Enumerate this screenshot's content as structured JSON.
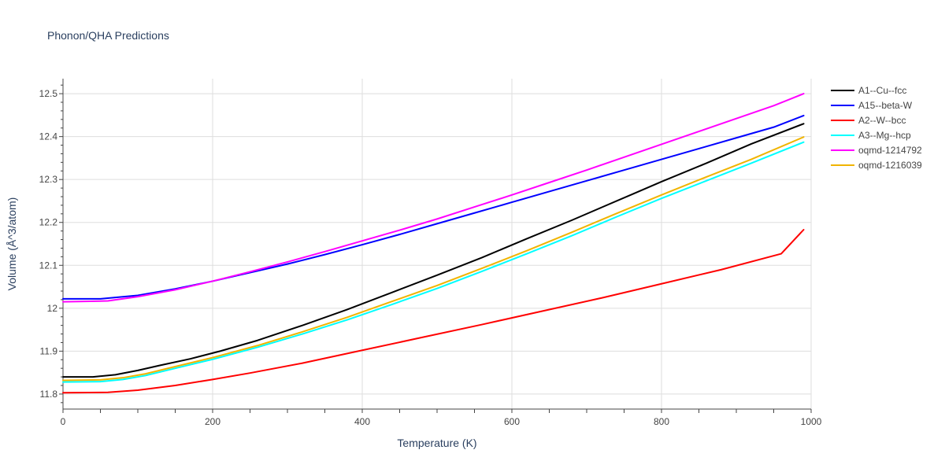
{
  "chart_data": {
    "type": "line",
    "title": "Phonon/QHA Predictions",
    "xlabel": "Temperature (K)",
    "ylabel": "Volume (Å^3/atom)",
    "xlim": [
      0,
      1000
    ],
    "ylim": [
      11.765,
      12.535
    ],
    "x_ticks": [
      0,
      200,
      400,
      600,
      800,
      1000
    ],
    "y_ticks": [
      11.8,
      11.9,
      12,
      12.1,
      12.2,
      12.3,
      12.4,
      12.5
    ],
    "x_tick_labels": [
      "0",
      "200",
      "400",
      "600",
      "800",
      "1000"
    ],
    "y_tick_labels": [
      "11.8",
      "11.9",
      "12",
      "12.1",
      "12.2",
      "12.3",
      "12.4",
      "12.5"
    ],
    "grid": true,
    "legend_position": "top-right",
    "series": [
      {
        "name": "A1--Cu--fcc",
        "color": "#000000",
        "x": [
          0,
          40,
          70,
          100,
          130,
          170,
          210,
          260,
          320,
          380,
          440,
          500,
          560,
          620,
          680,
          720,
          760,
          800,
          860,
          920,
          990
        ],
        "y": [
          11.84,
          11.84,
          11.845,
          11.855,
          11.867,
          11.882,
          11.9,
          11.925,
          11.96,
          11.997,
          12.037,
          12.077,
          12.118,
          12.162,
          12.205,
          12.235,
          12.265,
          12.295,
          12.338,
          12.383,
          12.43
        ]
      },
      {
        "name": "A15--beta-W",
        "color": "#0000ff",
        "x": [
          0,
          50,
          100,
          150,
          200,
          250,
          300,
          350,
          400,
          450,
          500,
          550,
          600,
          650,
          700,
          750,
          800,
          850,
          900,
          950,
          990
        ],
        "y": [
          12.022,
          12.022,
          12.03,
          12.045,
          12.063,
          12.083,
          12.103,
          12.125,
          12.148,
          12.172,
          12.197,
          12.222,
          12.247,
          12.272,
          12.297,
          12.322,
          12.347,
          12.372,
          12.397,
          12.422,
          12.449
        ]
      },
      {
        "name": "A2--W--bcc",
        "color": "#ff0000",
        "x": [
          0,
          60,
          100,
          150,
          200,
          250,
          320,
          400,
          480,
          560,
          640,
          720,
          800,
          880,
          960,
          990
        ],
        "y": [
          11.803,
          11.804,
          11.809,
          11.82,
          11.834,
          11.849,
          11.872,
          11.902,
          11.932,
          11.962,
          11.993,
          12.024,
          12.057,
          12.09,
          12.127,
          12.183
        ]
      },
      {
        "name": "A3--Mg--hcp",
        "color": "#00ffff",
        "x": [
          0,
          50,
          80,
          110,
          150,
          200,
          260,
          320,
          380,
          440,
          500,
          560,
          620,
          680,
          740,
          800,
          860,
          920,
          990
        ],
        "y": [
          11.828,
          11.829,
          11.834,
          11.843,
          11.86,
          11.881,
          11.909,
          11.94,
          11.973,
          12.009,
          12.046,
          12.086,
          12.127,
          12.169,
          12.213,
          12.256,
          12.297,
          12.338,
          12.387
        ]
      },
      {
        "name": "oqmd-1214792",
        "color": "#ff00ff",
        "x": [
          0,
          60,
          100,
          150,
          200,
          250,
          300,
          350,
          400,
          450,
          500,
          550,
          600,
          650,
          700,
          750,
          800,
          850,
          900,
          950,
          990
        ],
        "y": [
          12.015,
          12.017,
          12.027,
          12.043,
          12.063,
          12.085,
          12.108,
          12.132,
          12.157,
          12.182,
          12.208,
          12.236,
          12.264,
          12.293,
          12.322,
          12.352,
          12.382,
          12.412,
          12.442,
          12.472,
          12.5
        ]
      },
      {
        "name": "oqmd-1216039",
        "color": "#f0b400",
        "x": [
          0,
          50,
          80,
          110,
          150,
          200,
          260,
          320,
          380,
          440,
          500,
          560,
          620,
          680,
          740,
          800,
          860,
          920,
          990
        ],
        "y": [
          11.832,
          11.833,
          11.838,
          11.847,
          11.864,
          11.885,
          11.913,
          11.945,
          11.979,
          12.016,
          12.053,
          12.093,
          12.134,
          12.177,
          12.221,
          12.264,
          12.306,
          12.347,
          12.399
        ]
      }
    ]
  }
}
